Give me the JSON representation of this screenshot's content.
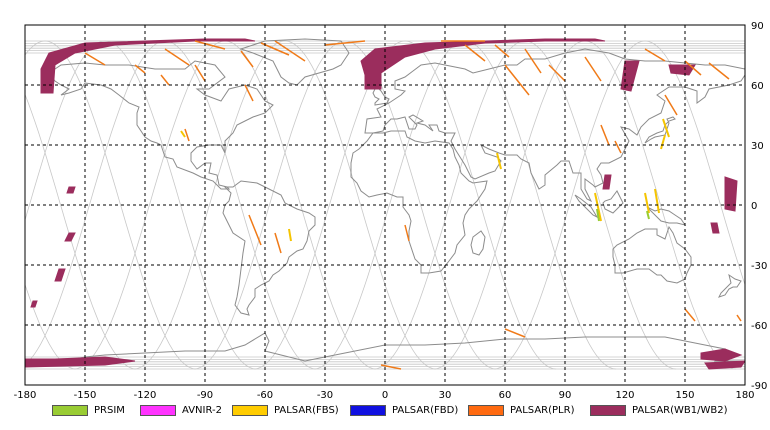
{
  "map": {
    "x_range": [
      -180,
      180
    ],
    "y_range": [
      -90,
      90
    ],
    "x_ticks": [
      "-180",
      "-150",
      "-120",
      "-90",
      "-60",
      "-30",
      "0",
      "30",
      "60",
      "90",
      "120",
      "150",
      "180"
    ],
    "y_ticks": [
      "90",
      "60",
      "30",
      "0",
      "-30",
      "-60",
      "-90"
    ],
    "grid": "dashed",
    "colors": {
      "grid": "#000000",
      "coast": "#8c8c8c",
      "orbit": "#c8c8c8",
      "swath_wb": "#9b2d5d",
      "swath_plr": "#f07a18",
      "swath_fbs": "#f5c400",
      "prism": "#99cc33"
    }
  },
  "legend": [
    {
      "label": "PRSIM",
      "color": "#99cc33"
    },
    {
      "label": "AVNIR-2",
      "color": "#ff33ff"
    },
    {
      "label": "PALSAR(FBS)",
      "color": "#ffcc00"
    },
    {
      "label": "PALSAR(FBD)",
      "color": "#1010e0"
    },
    {
      "label": "PALSAR(PLR)",
      "color": "#ff6a10"
    },
    {
      "label": "PALSAR(WB1/WB2)",
      "color": "#9b2d5d"
    }
  ]
}
